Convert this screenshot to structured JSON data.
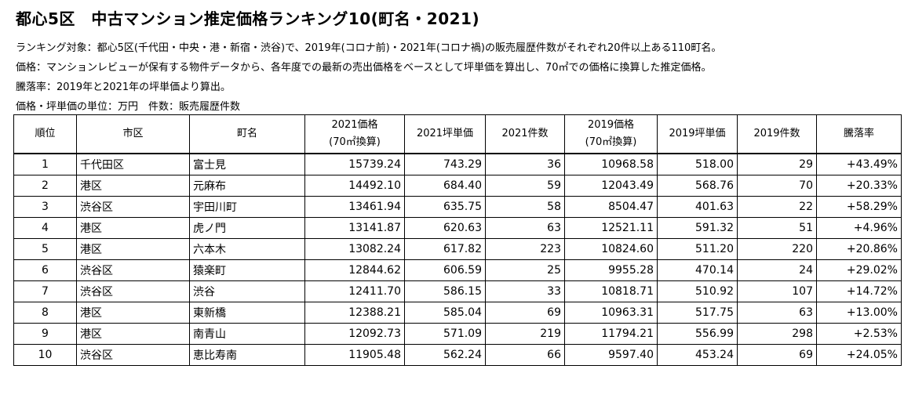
{
  "title": "都心5区　中古マンション推定価格ランキング10(町名・2021)",
  "notes": [
    "ランキング対象：都心5区(千代田・中央・港・新宿・渋谷)で、2019年(コロナ前)・2021年(コロナ禍)の販売履歴件数がそれぞれ20件以上ある110町名。",
    "価格：マンションレビューが保有する物件データから、各年度での最新の売出価格をベースとして坪単価を算出し、70㎡での価格に換算した推定価格。",
    "騰落率：2019年と2021年の坪単価より算出。",
    "価格・坪単価の単位：万円　件数：販売履歴件数"
  ],
  "table": {
    "headers": [
      {
        "line1": "順位",
        "line2": ""
      },
      {
        "line1": "市区",
        "line2": ""
      },
      {
        "line1": "町名",
        "line2": ""
      },
      {
        "line1": "2021価格",
        "line2": "(70㎡換算)"
      },
      {
        "line1": "2021坪単価",
        "line2": ""
      },
      {
        "line1": "2021件数",
        "line2": ""
      },
      {
        "line1": "2019価格",
        "line2": "(70㎡換算)"
      },
      {
        "line1": "2019坪単価",
        "line2": ""
      },
      {
        "line1": "2019件数",
        "line2": ""
      },
      {
        "line1": "騰落率",
        "line2": ""
      }
    ],
    "rows": [
      [
        "1",
        "千代田区",
        "富士見",
        "15739.24",
        "743.29",
        "36",
        "10968.58",
        "518.00",
        "29",
        "+43.49%"
      ],
      [
        "2",
        "港区",
        "元麻布",
        "14492.10",
        "684.40",
        "59",
        "12043.49",
        "568.76",
        "70",
        "+20.33%"
      ],
      [
        "3",
        "渋谷区",
        "宇田川町",
        "13461.94",
        "635.75",
        "58",
        "8504.47",
        "401.63",
        "22",
        "+58.29%"
      ],
      [
        "4",
        "港区",
        "虎ノ門",
        "13141.87",
        "620.63",
        "63",
        "12521.11",
        "591.32",
        "51",
        "+4.96%"
      ],
      [
        "5",
        "港区",
        "六本木",
        "13082.24",
        "617.82",
        "223",
        "10824.60",
        "511.20",
        "220",
        "+20.86%"
      ],
      [
        "6",
        "渋谷区",
        "猿楽町",
        "12844.62",
        "606.59",
        "25",
        "9955.28",
        "470.14",
        "24",
        "+29.02%"
      ],
      [
        "7",
        "渋谷区",
        "渋谷",
        "12411.70",
        "586.15",
        "33",
        "10818.71",
        "510.92",
        "107",
        "+14.72%"
      ],
      [
        "8",
        "港区",
        "東新橋",
        "12388.21",
        "585.04",
        "69",
        "10963.31",
        "517.75",
        "63",
        "+13.00%"
      ],
      [
        "9",
        "港区",
        "南青山",
        "12092.73",
        "571.09",
        "219",
        "11794.21",
        "556.99",
        "298",
        "+2.53%"
      ],
      [
        "10",
        "渋谷区",
        "恵比寿南",
        "11905.48",
        "562.24",
        "66",
        "9597.40",
        "453.24",
        "69",
        "+24.05%"
      ]
    ]
  }
}
